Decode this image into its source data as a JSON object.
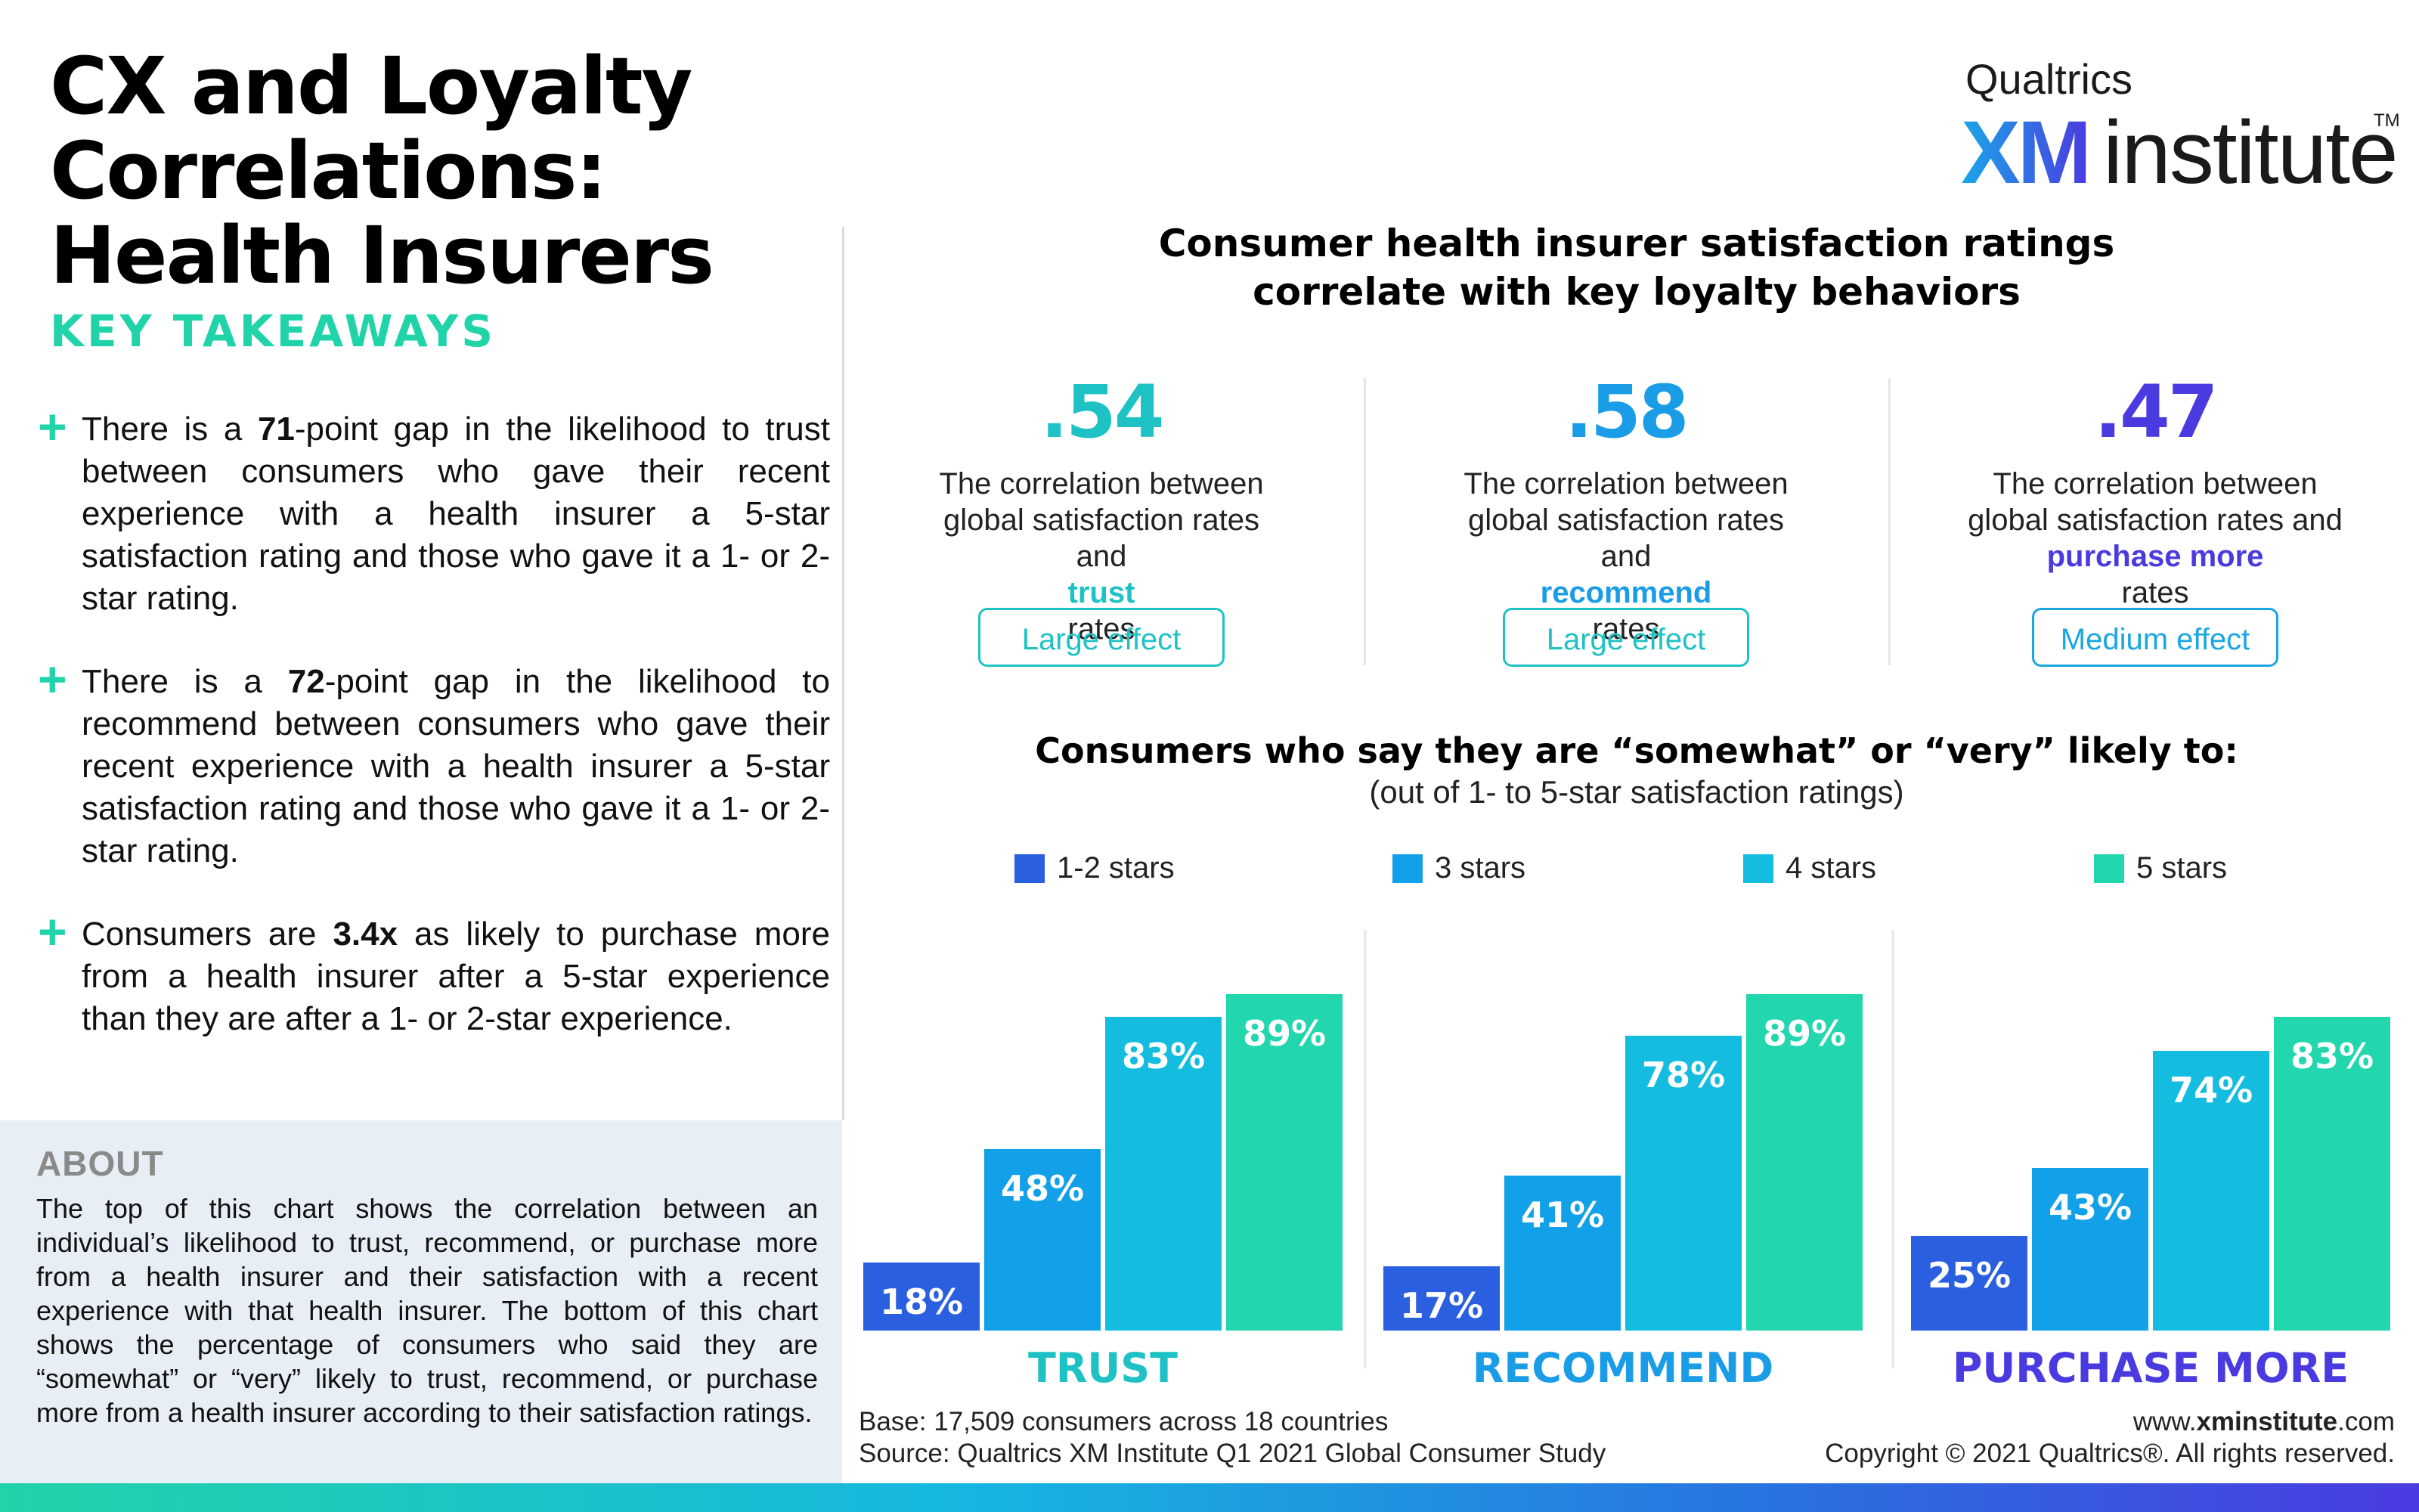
{
  "header": {
    "title_line1": "CX and Loyalty Correlations:",
    "title_line2": "Health Insurers",
    "logo": {
      "brand": "Qualtrics",
      "xm": "XM",
      "institute": "institute",
      "tm": "TM"
    }
  },
  "takeaways": {
    "heading": "KEY TAKEAWAYS",
    "items": [
      {
        "pre": "There is a ",
        "bold": "71",
        "post": "-point gap in the likelihood to trust between consumers who gave their recent experience with a health insurer a 5-star satisfaction rating and those who gave it a 1- or 2-star rating."
      },
      {
        "pre": "There is a ",
        "bold": "72",
        "post": "-point gap in the likelihood to recommend between consumers who gave their recent experience with a health insurer a 5-star satisfaction rating and those who gave it a 1- or 2-star rating."
      },
      {
        "pre": "Consumers are ",
        "bold": "3.4x",
        "post": " as likely to purchase more from a health insurer after a 5-star experience than they are after a 1- or 2-star experience."
      }
    ]
  },
  "about": {
    "title": "ABOUT",
    "body": "The top of this chart shows the correlation between an individual’s likelihood to trust, recommend, or purchase more from a health insurer and their satisfaction with a recent experience with that health insurer. The bottom of this chart shows the percentage of consumers who said they are “somewhat” or “very” likely to trust, recommend, or purchase more from a health insurer according to their satisfaction ratings."
  },
  "correlations": {
    "heading_line1": "Consumer health insurer satisfaction ratings",
    "heading_line2": "correlate with key loyalty behaviors",
    "cards": [
      {
        "value": ".54",
        "line1": "The correlation between",
        "line2": "global satisfaction rates",
        "line3_pre": "and ",
        "highlight": "trust",
        "line3_post": " rates",
        "effect": "Large effect",
        "color": "#1fc2c4"
      },
      {
        "value": ".58",
        "line1": "The correlation between",
        "line2": "global satisfaction rates",
        "line3_pre": "and ",
        "highlight": "recommend",
        "line3_post": " rates",
        "effect": "Large effect",
        "color": "#1a9ce6",
        "effect_color": "#1fc2c4"
      },
      {
        "value": ".47",
        "line1": "The correlation between",
        "line2": "global satisfaction rates and",
        "line3_pre": "",
        "highlight": "purchase more",
        "line3_post": " rates",
        "effect": "Medium effect",
        "color": "#4a3be0",
        "effect_color": "#1aa6e0"
      }
    ]
  },
  "bars": {
    "heading": "Consumers who say they are “somewhat” or “very” likely to:",
    "subheading": "(out of 1- to 5-star satisfaction ratings)"
  },
  "chart_data": {
    "type": "bar",
    "categories": [
      "TRUST",
      "RECOMMEND",
      "PURCHASE MORE"
    ],
    "series": [
      {
        "name": "1-2 stars",
        "values": [
          18,
          17,
          25
        ],
        "color": "#2a5fe0"
      },
      {
        "name": "3 stars",
        "values": [
          48,
          41,
          43
        ],
        "color": "#12a0e8"
      },
      {
        "name": "4 stars",
        "values": [
          83,
          78,
          74
        ],
        "color": "#14bde0"
      },
      {
        "name": "5 stars",
        "values": [
          89,
          89,
          83
        ],
        "color": "#22d6ae"
      }
    ],
    "value_suffix": "%",
    "category_colors": [
      "#1fc2c4",
      "#1a9ce6",
      "#4a3be0"
    ],
    "ylim": [
      0,
      100
    ]
  },
  "footer": {
    "base": "Base: 17,509 consumers across 18 countries",
    "source": "Source: Qualtrics XM Institute Q1 2021 Global Consumer Study",
    "website_pre": "www.",
    "website_bold": "xminstitute",
    "website_post": ".com",
    "copyright": "Copyright © 2021 Qualtrics®. All rights reserved."
  }
}
